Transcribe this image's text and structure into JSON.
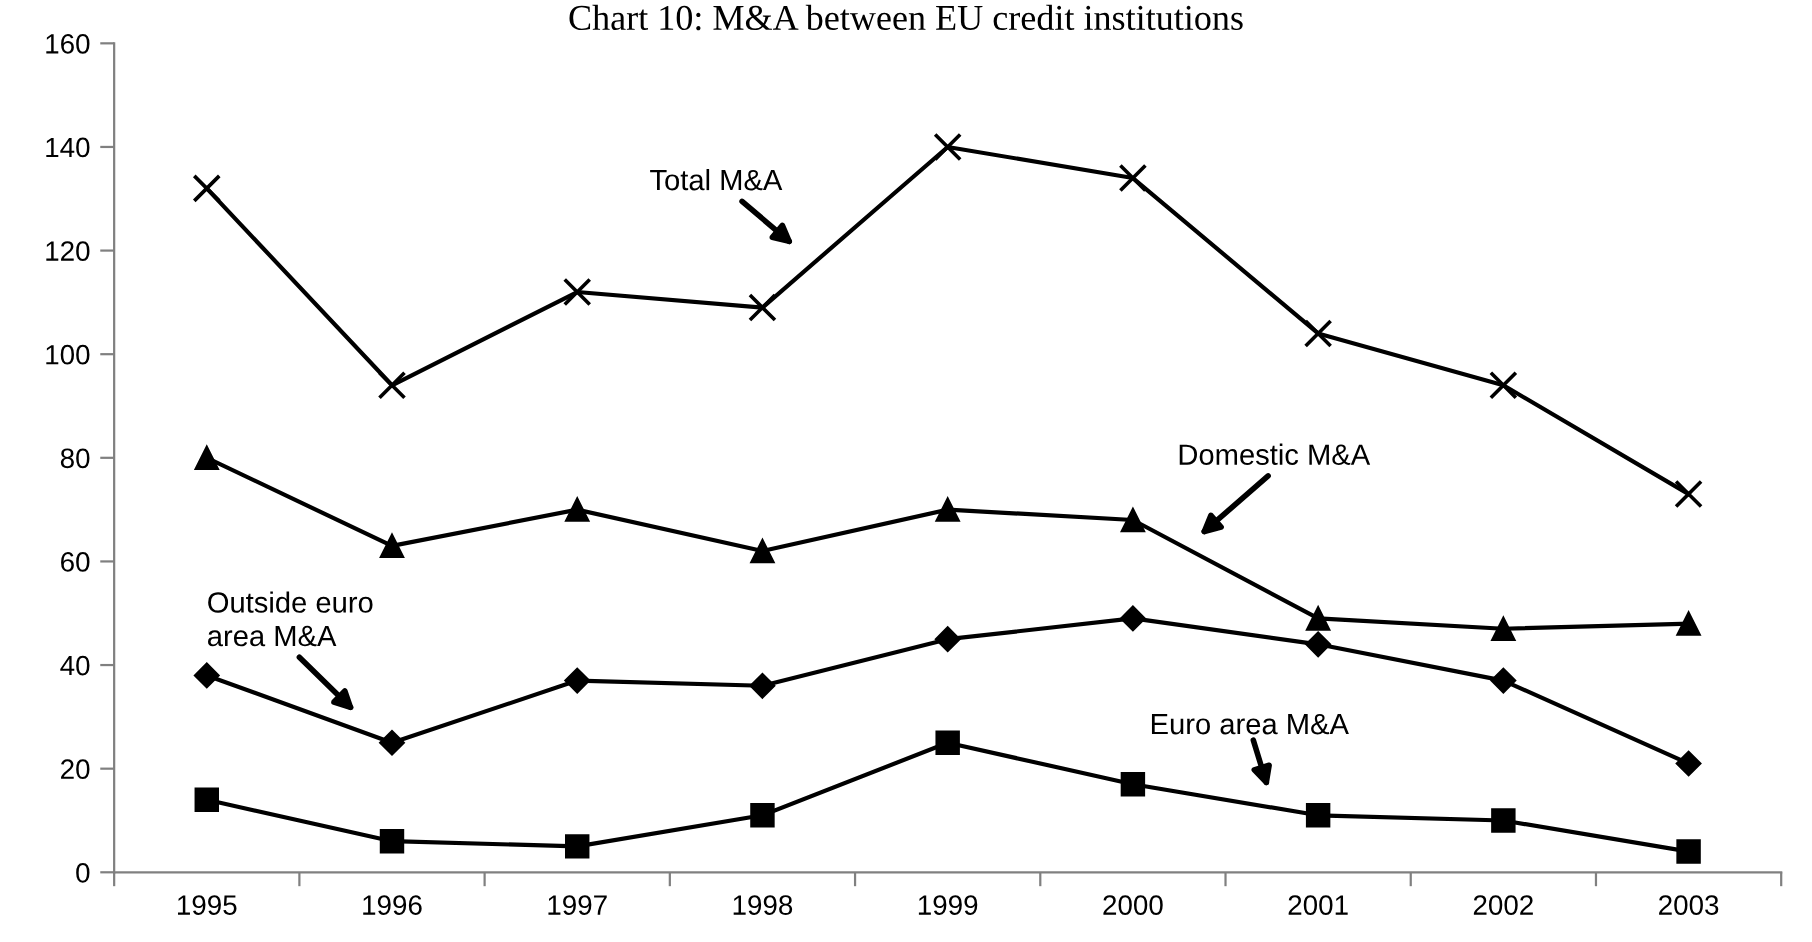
{
  "chart_data": {
    "type": "line",
    "title": "Chart 10: M&A between EU credit institutions",
    "categories": [
      "1995",
      "1996",
      "1997",
      "1998",
      "1999",
      "2000",
      "2001",
      "2002",
      "2003"
    ],
    "series": [
      {
        "name": "Total M&A",
        "color": "#000000",
        "marker": "cross",
        "values": [
          132,
          94,
          112,
          109,
          140,
          134,
          104,
          94,
          73
        ]
      },
      {
        "name": "Domestic M&A",
        "color": "#000000",
        "marker": "triangle",
        "values": [
          80,
          63,
          70,
          62,
          70,
          68,
          49,
          47,
          48
        ]
      },
      {
        "name": "Outside euro\narea M&A",
        "color": "#000000",
        "marker": "diamond",
        "values": [
          38,
          25,
          37,
          36,
          45,
          49,
          44,
          37,
          21
        ]
      },
      {
        "name": "Euro area M&A",
        "color": "#000000",
        "marker": "square",
        "values": [
          14,
          6,
          5,
          11,
          25,
          17,
          11,
          10,
          4
        ]
      }
    ],
    "ylim": [
      0,
      160
    ],
    "yticks": [
      0,
      20,
      40,
      60,
      80,
      100,
      120,
      140,
      160
    ],
    "grid": false,
    "legend": false,
    "line_style": "solid"
  }
}
